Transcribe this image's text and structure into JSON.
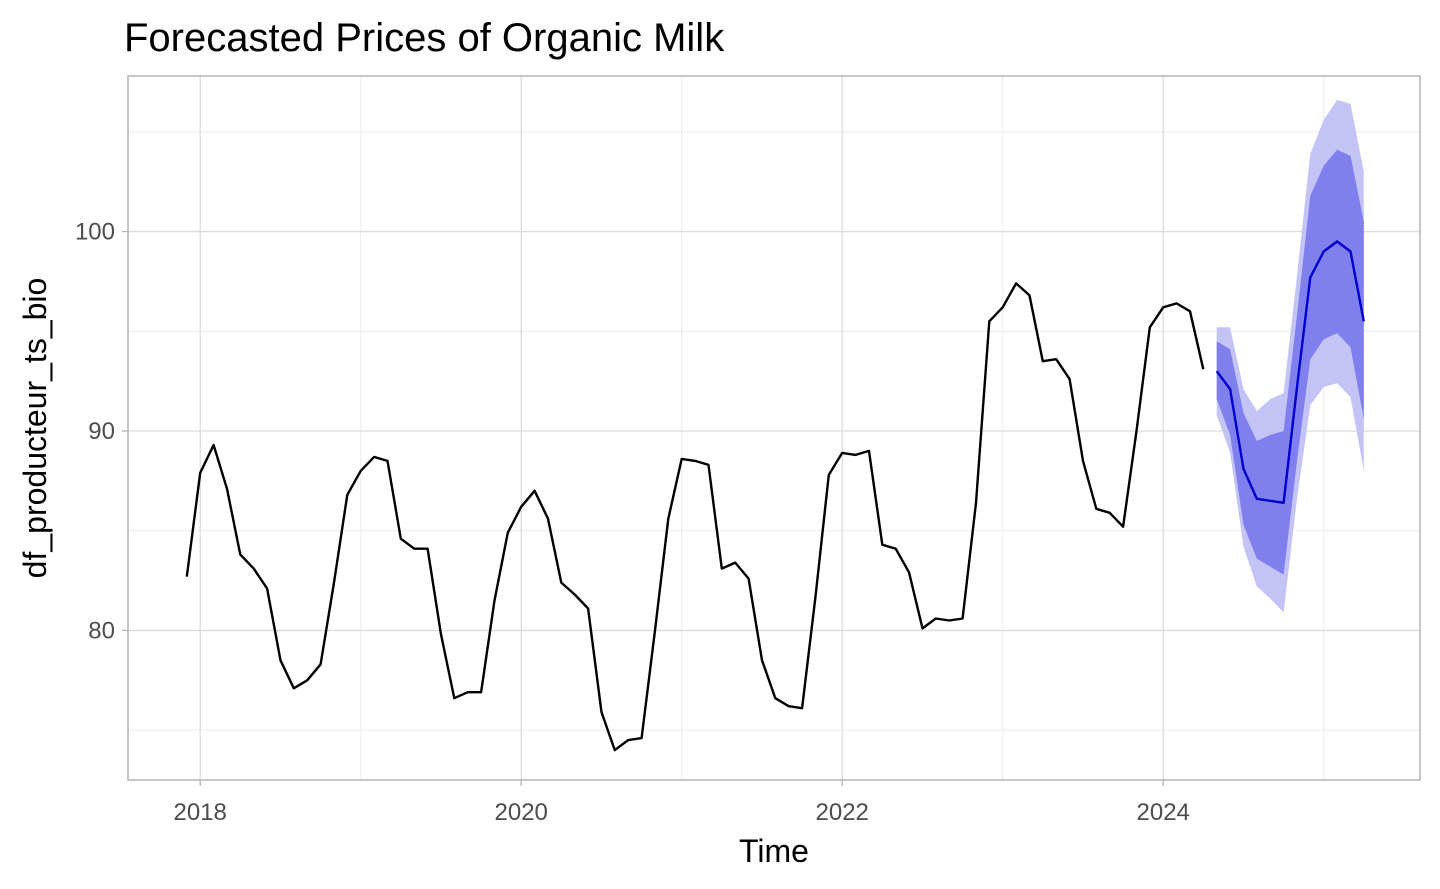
{
  "chart_data": {
    "type": "line",
    "title": "Forecasted Prices of Organic Milk",
    "xlabel": "Time",
    "ylabel": "df_producteur_ts_bio",
    "xlim": [
      2017.55,
      2025.6
    ],
    "ylim": [
      72.5,
      107.8
    ],
    "x_ticks": [
      2018,
      2020,
      2022,
      2024
    ],
    "x_tick_labels": [
      "2018",
      "2020",
      "2022",
      "2024"
    ],
    "y_ticks": [
      80,
      90,
      100
    ],
    "y_tick_labels": [
      "80",
      "90",
      "100"
    ],
    "grid": true,
    "legend": "none",
    "colors": {
      "observed": "#000000",
      "forecast": "#0000cc",
      "band_80": "#7f7fee",
      "band_95": "#c3c3f5",
      "grid_major": "#dcdcdc",
      "grid_minor": "#ececec",
      "panel_border": "#b3b3b3"
    },
    "observed": {
      "start": [
        2017,
        12
      ],
      "frequency": 12,
      "values": [
        82.7,
        87.9,
        89.3,
        87.1,
        83.8,
        83.1,
        82.1,
        78.5,
        77.1,
        77.5,
        78.3,
        82.4,
        86.8,
        88.0,
        88.7,
        88.5,
        84.6,
        84.1,
        84.1,
        79.8,
        76.6,
        76.9,
        76.9,
        81.5,
        84.9,
        86.2,
        87.0,
        85.6,
        82.4,
        81.8,
        81.1,
        75.9,
        74.0,
        74.5,
        74.6,
        80.0,
        85.6,
        88.6,
        88.5,
        88.3,
        83.1,
        83.4,
        82.6,
        78.5,
        76.6,
        76.2,
        76.1,
        81.7,
        87.8,
        88.9,
        88.8,
        89.0,
        84.3,
        84.1,
        82.9,
        80.1,
        80.6,
        80.5,
        80.6,
        86.4,
        95.5,
        96.2,
        97.4,
        96.8,
        93.5,
        93.6,
        92.6,
        88.5,
        86.1,
        85.9,
        85.2,
        90.0,
        95.2,
        96.2,
        96.4,
        96.0,
        93.1
      ]
    },
    "forecast": {
      "start": [
        2024,
        5
      ],
      "frequency": 12,
      "mean": [
        93.0,
        92.1,
        88.1,
        86.6,
        86.5,
        86.4,
        92.2,
        97.7,
        99.0,
        99.5,
        99.0,
        95.5
      ],
      "lo80": [
        91.6,
        89.8,
        85.3,
        83.6,
        83.2,
        82.8,
        88.5,
        93.6,
        94.6,
        94.9,
        94.2,
        90.6
      ],
      "hi80": [
        94.5,
        94.1,
        90.9,
        89.5,
        89.8,
        90.0,
        95.8,
        101.8,
        103.3,
        104.1,
        103.8,
        100.5
      ],
      "lo95": [
        90.8,
        88.9,
        84.2,
        82.2,
        81.6,
        80.9,
        86.6,
        91.3,
        92.2,
        92.4,
        91.7,
        88.0
      ],
      "hi95": [
        95.2,
        95.2,
        92.1,
        91.0,
        91.6,
        91.9,
        97.8,
        103.9,
        105.6,
        106.6,
        106.4,
        103.0
      ]
    }
  }
}
